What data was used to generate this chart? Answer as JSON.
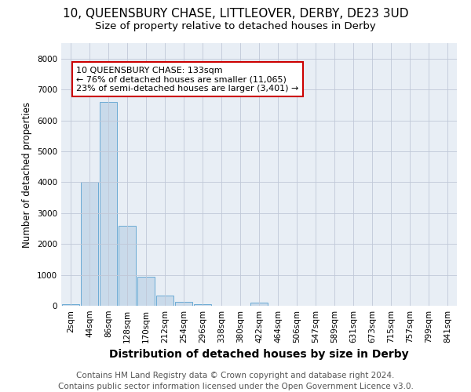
{
  "title": "10, QUEENSBURY CHASE, LITTLEOVER, DERBY, DE23 3UD",
  "subtitle": "Size of property relative to detached houses in Derby",
  "xlabel": "Distribution of detached houses by size in Derby",
  "ylabel": "Number of detached properties",
  "footer": "Contains HM Land Registry data © Crown copyright and database right 2024.\nContains public sector information licensed under the Open Government Licence v3.0.",
  "categories": [
    "2sqm",
    "44sqm",
    "86sqm",
    "128sqm",
    "170sqm",
    "212sqm",
    "254sqm",
    "296sqm",
    "338sqm",
    "380sqm",
    "422sqm",
    "464sqm",
    "506sqm",
    "547sqm",
    "589sqm",
    "631sqm",
    "673sqm",
    "715sqm",
    "757sqm",
    "799sqm",
    "841sqm"
  ],
  "values": [
    50,
    4000,
    6600,
    2600,
    950,
    330,
    130,
    50,
    0,
    0,
    100,
    0,
    0,
    0,
    0,
    0,
    0,
    0,
    0,
    0,
    0
  ],
  "bar_color": "#c9daea",
  "bar_edge_color": "#6aaad4",
  "annotation_text": "10 QUEENSBURY CHASE: 133sqm\n← 76% of detached houses are smaller (11,065)\n23% of semi-detached houses are larger (3,401) →",
  "annotation_box_color": "#ffffff",
  "annotation_box_edge": "#cc0000",
  "ylim": [
    0,
    8500
  ],
  "yticks": [
    0,
    1000,
    2000,
    3000,
    4000,
    5000,
    6000,
    7000,
    8000
  ],
  "bg_color": "#ffffff",
  "plot_bg_color": "#e8eef5",
  "grid_color": "#c0c8d8",
  "title_fontsize": 11,
  "subtitle_fontsize": 9.5,
  "xlabel_fontsize": 10,
  "ylabel_fontsize": 8.5,
  "tick_fontsize": 7.5,
  "footer_fontsize": 7.5
}
